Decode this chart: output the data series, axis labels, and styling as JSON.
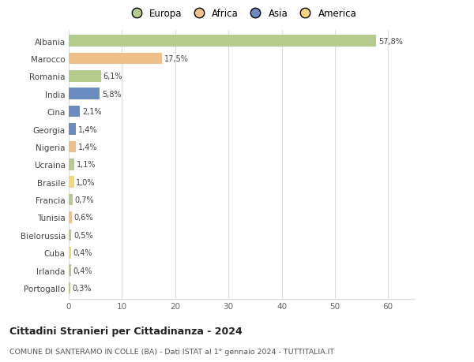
{
  "countries": [
    "Albania",
    "Marocco",
    "Romania",
    "India",
    "Cina",
    "Georgia",
    "Nigeria",
    "Ucraina",
    "Brasile",
    "Francia",
    "Tunisia",
    "Bielorussia",
    "Cuba",
    "Irlanda",
    "Portogallo"
  ],
  "values": [
    57.8,
    17.5,
    6.1,
    5.8,
    2.1,
    1.4,
    1.4,
    1.1,
    1.0,
    0.7,
    0.6,
    0.5,
    0.4,
    0.4,
    0.3
  ],
  "labels": [
    "57,8%",
    "17,5%",
    "6,1%",
    "5,8%",
    "2,1%",
    "1,4%",
    "1,4%",
    "1,1%",
    "1,0%",
    "0,7%",
    "0,6%",
    "0,5%",
    "0,4%",
    "0,4%",
    "0,3%"
  ],
  "colors": [
    "#b5cc8e",
    "#f0c08a",
    "#b5cc8e",
    "#6b8cbf",
    "#6b8cbf",
    "#6b8cbf",
    "#f0c08a",
    "#b5cc8e",
    "#f5d57a",
    "#b5cc8e",
    "#f0c08a",
    "#b5cc8e",
    "#f5d57a",
    "#b5cc8e",
    "#b5cc8e"
  ],
  "legend_labels": [
    "Europa",
    "Africa",
    "Asia",
    "America"
  ],
  "legend_colors": [
    "#b5cc8e",
    "#f0c08a",
    "#6b8cbf",
    "#f5d57a"
  ],
  "title": "Cittadini Stranieri per Cittadinanza - 2024",
  "subtitle": "COMUNE DI SANTERAMO IN COLLE (BA) - Dati ISTAT al 1° gennaio 2024 - TUTTITALIA.IT",
  "xlim": [
    0,
    65
  ],
  "xticks": [
    0,
    10,
    20,
    30,
    40,
    50,
    60
  ],
  "bg_color": "#ffffff",
  "grid_color": "#dddddd",
  "bar_height": 0.65
}
